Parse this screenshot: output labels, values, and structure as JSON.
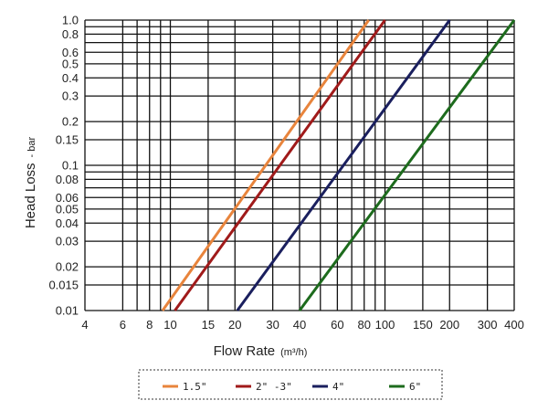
{
  "chart_data": {
    "type": "line",
    "title": "",
    "xlabel": "Flow Rate",
    "xlabel_unit": "(m³/h)",
    "ylabel": "Head Loss",
    "ylabel_unit": "- bar",
    "x_scale": "log",
    "y_scale": "log",
    "xlim": [
      4,
      400
    ],
    "ylim": [
      0.01,
      1.0
    ],
    "grid": true,
    "legend_position": "bottom",
    "x_ticks": [
      "4",
      "6",
      "8",
      "10",
      "15",
      "20",
      "30",
      "40",
      "60",
      "80",
      "100",
      "150",
      "200",
      "300",
      "400"
    ],
    "x_tick_values": [
      4,
      6,
      8,
      10,
      15,
      20,
      30,
      40,
      60,
      80,
      100,
      150,
      200,
      300,
      400
    ],
    "x_minor_grid": [
      7,
      9,
      50,
      70,
      90
    ],
    "y_ticks": [
      "0.01",
      "0.015",
      "0.02",
      "0.03",
      "0.04",
      "0.05",
      "0.06",
      "0.08",
      "0.1",
      "0.15",
      "0.2",
      "0.3",
      "0.4",
      "0.5",
      "0.6",
      "0.8",
      "1.0"
    ],
    "y_tick_values": [
      0.01,
      0.015,
      0.02,
      0.03,
      0.04,
      0.05,
      0.06,
      0.08,
      0.1,
      0.15,
      0.2,
      0.3,
      0.4,
      0.5,
      0.6,
      0.8,
      1.0
    ],
    "y_minor_grid": [
      0.07,
      0.09,
      0.7,
      0.9
    ],
    "series": [
      {
        "name": "1.5\"",
        "color": "#e8843c",
        "x": [
          9.2,
          84
        ],
        "y": [
          0.01,
          1.0
        ]
      },
      {
        "name": "2\" -3\"",
        "color": "#a01a1a",
        "x": [
          10.5,
          100
        ],
        "y": [
          0.01,
          1.0
        ]
      },
      {
        "name": "4\"",
        "color": "#1a1f5e",
        "x": [
          20.5,
          200
        ],
        "y": [
          0.01,
          1.0
        ]
      },
      {
        "name": "6\"",
        "color": "#1d6b1d",
        "x": [
          40,
          400
        ],
        "y": [
          0.01,
          1.0
        ]
      }
    ]
  }
}
